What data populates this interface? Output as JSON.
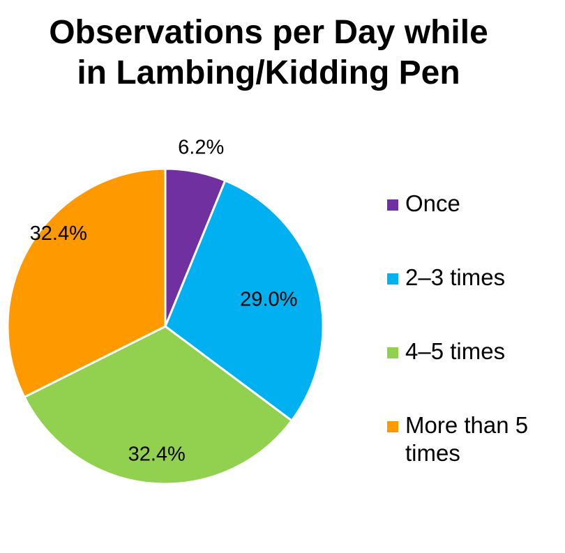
{
  "chart_data": {
    "type": "pie",
    "title": [
      "Observations per Day while",
      "in Lambing/Kidding Pen"
    ],
    "categories": [
      "Once",
      "2–3 times",
      "4–5 times",
      "More than 5 times"
    ],
    "values": [
      6.2,
      29.0,
      32.4,
      32.4
    ],
    "data_labels": [
      "6.2%",
      "29.0%",
      "32.4%",
      "32.4%"
    ],
    "colors": [
      "#7030A0",
      "#00B0F0",
      "#92D050",
      "#FF9900"
    ],
    "legend_position": "right",
    "start_angle": "12 o'clock",
    "direction": "clockwise"
  }
}
